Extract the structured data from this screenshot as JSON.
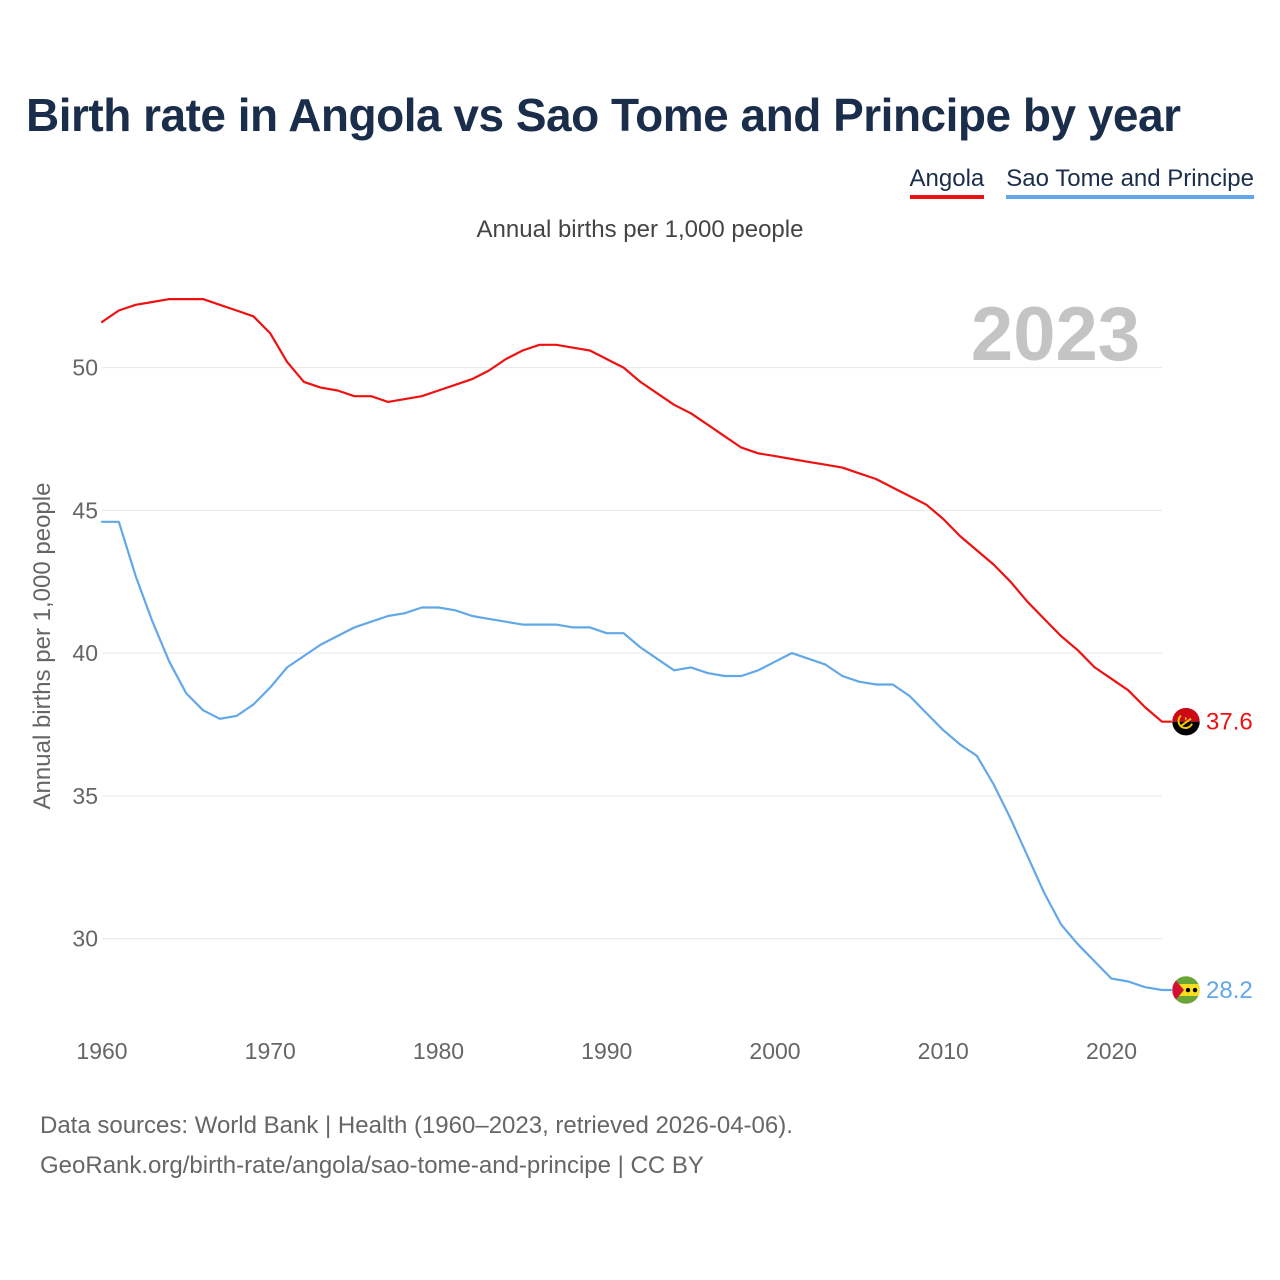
{
  "title": "Birth rate in Angola vs Sao Tome and Principe by year",
  "subtitle": "Annual births per 1,000 people",
  "footer": {
    "line1": "Data sources: World Bank | Health (1960–2023, retrieved 2026-04-06).",
    "line2": "GeoRank.org/birth-rate/angola/sao-tome-and-principe | CC BY"
  },
  "chart_data": {
    "type": "line",
    "title": "Birth rate in Angola vs Sao Tome and Principe by year",
    "xlabel": "",
    "ylabel": "Annual births per 1,000 people",
    "xlim": [
      1960,
      2023
    ],
    "ylim": [
      27.5,
      53
    ],
    "yticks": [
      30,
      35,
      40,
      45,
      50
    ],
    "xticks": [
      1960,
      1970,
      1980,
      1990,
      2000,
      2010,
      2020
    ],
    "highlight_year": "2023",
    "legend_position": "top-right",
    "x": [
      1960,
      1961,
      1962,
      1963,
      1964,
      1965,
      1966,
      1967,
      1968,
      1969,
      1970,
      1971,
      1972,
      1973,
      1974,
      1975,
      1976,
      1977,
      1978,
      1979,
      1980,
      1981,
      1982,
      1983,
      1984,
      1985,
      1986,
      1987,
      1988,
      1989,
      1990,
      1991,
      1992,
      1993,
      1994,
      1995,
      1996,
      1997,
      1998,
      1999,
      2000,
      2001,
      2002,
      2003,
      2004,
      2005,
      2006,
      2007,
      2008,
      2009,
      2010,
      2011,
      2012,
      2013,
      2014,
      2015,
      2016,
      2017,
      2018,
      2019,
      2020,
      2021,
      2022,
      2023
    ],
    "series": [
      {
        "name": "Angola",
        "color": "#ee1111",
        "end_label": "37.6",
        "flag": "angola",
        "values": [
          51.6,
          52.0,
          52.2,
          52.3,
          52.4,
          52.4,
          52.4,
          52.2,
          52.0,
          51.8,
          51.2,
          50.2,
          49.5,
          49.3,
          49.2,
          49.0,
          49.0,
          48.8,
          48.9,
          49.0,
          49.2,
          49.4,
          49.6,
          49.9,
          50.3,
          50.6,
          50.8,
          50.8,
          50.7,
          50.6,
          50.3,
          50.0,
          49.5,
          49.1,
          48.7,
          48.4,
          48.0,
          47.6,
          47.2,
          47.0,
          46.9,
          46.8,
          46.7,
          46.6,
          46.5,
          46.3,
          46.1,
          45.8,
          45.5,
          45.2,
          44.7,
          44.1,
          43.6,
          43.1,
          42.5,
          41.8,
          41.2,
          40.6,
          40.1,
          39.5,
          39.1,
          38.7,
          38.1,
          37.6
        ]
      },
      {
        "name": "Sao Tome and Principe",
        "color": "#62a8e8",
        "end_label": "28.2",
        "flag": "sao-tome",
        "values": [
          44.6,
          44.6,
          42.7,
          41.1,
          39.7,
          38.6,
          38.0,
          37.7,
          37.8,
          38.2,
          38.8,
          39.5,
          39.9,
          40.3,
          40.6,
          40.9,
          41.1,
          41.3,
          41.4,
          41.6,
          41.6,
          41.5,
          41.3,
          41.2,
          41.1,
          41.0,
          41.0,
          41.0,
          40.9,
          40.9,
          40.7,
          40.7,
          40.2,
          39.8,
          39.4,
          39.5,
          39.3,
          39.2,
          39.2,
          39.4,
          39.7,
          40.0,
          39.8,
          39.6,
          39.2,
          39.0,
          38.9,
          38.9,
          38.5,
          37.9,
          37.3,
          36.8,
          36.4,
          35.4,
          34.2,
          32.9,
          31.6,
          30.5,
          29.8,
          29.2,
          28.6,
          28.5,
          28.3,
          28.2
        ]
      }
    ]
  }
}
